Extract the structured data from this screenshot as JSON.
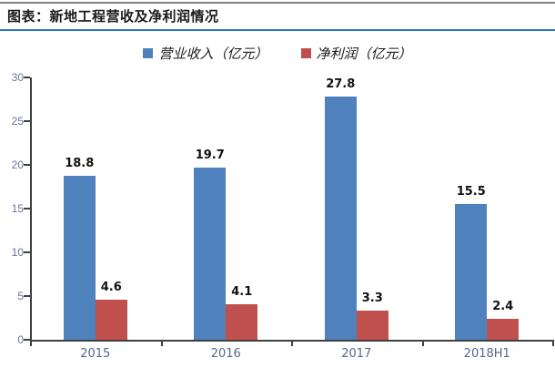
{
  "header": {
    "title": "图表：新地工程营收及净利润情况"
  },
  "colors": {
    "revenue_blue": "#4F81BD",
    "profit_red": "#C0504D",
    "axis_line": "#404040",
    "tick_label": "#64769A",
    "top_rule_gray": "#808080",
    "title_underline_blue": "#2E7BC4"
  },
  "chart_data": {
    "type": "bar",
    "title": "图表：新地工程营收及净利润情况",
    "categories": [
      "2015",
      "2016",
      "2017",
      "2018H1"
    ],
    "series": [
      {
        "name": "营业收入（亿元）",
        "color": "#4F81BD",
        "values": [
          18.8,
          19.7,
          27.8,
          15.5
        ]
      },
      {
        "name": "净利润（亿元）",
        "color": "#C0504D",
        "values": [
          4.6,
          4.1,
          3.3,
          2.4
        ]
      }
    ],
    "data_labels": [
      "18.8",
      "19.7",
      "27.8",
      "15.5",
      "4.6",
      "4.1",
      "3.3",
      "2.4"
    ],
    "xlabel": "",
    "ylabel": "",
    "ylim": [
      0,
      30
    ],
    "yticks": [
      0,
      5,
      10,
      15,
      20,
      25,
      30
    ],
    "grid": false,
    "legend_position": "top-center"
  }
}
